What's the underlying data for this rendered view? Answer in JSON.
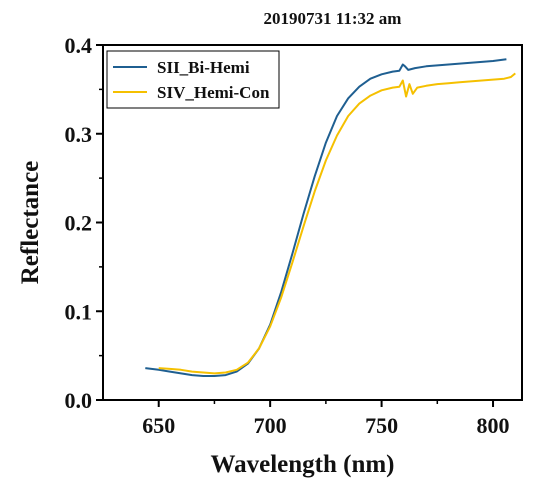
{
  "chart_data": {
    "type": "line",
    "title": "20190731 11:32 am",
    "xlabel": "Wavelength (nm)",
    "ylabel": "Reflectance",
    "xlim": [
      625,
      813
    ],
    "ylim": [
      0.0,
      0.4
    ],
    "x_ticks": [
      650,
      700,
      750,
      800
    ],
    "y_ticks": [
      0.0,
      0.1,
      0.2,
      0.3,
      0.4
    ],
    "x_tick_labels": [
      "650",
      "700",
      "750",
      "800"
    ],
    "y_tick_labels": [
      "0.0",
      "0.1",
      "0.2",
      "0.3",
      "0.4"
    ],
    "grid": false,
    "legend_position": "top-left",
    "series": [
      {
        "name": "SII_Bi-Hemi",
        "color": "#1f5f91",
        "x": [
          644,
          650,
          655,
          660,
          665,
          670,
          675,
          680,
          685,
          690,
          695,
          700,
          705,
          710,
          715,
          720,
          725,
          730,
          735,
          740,
          745,
          750,
          755,
          758,
          759.5,
          760.5,
          762,
          765,
          770,
          775,
          780,
          785,
          790,
          795,
          800,
          806
        ],
        "y": [
          0.036,
          0.034,
          0.032,
          0.03,
          0.028,
          0.027,
          0.027,
          0.028,
          0.032,
          0.041,
          0.058,
          0.085,
          0.122,
          0.165,
          0.21,
          0.252,
          0.29,
          0.32,
          0.34,
          0.353,
          0.362,
          0.367,
          0.37,
          0.371,
          0.378,
          0.376,
          0.372,
          0.374,
          0.376,
          0.377,
          0.378,
          0.379,
          0.38,
          0.381,
          0.382,
          0.384
        ]
      },
      {
        "name": "SIV_Hemi-Con",
        "color": "#f5c000",
        "x": [
          650,
          655,
          660,
          665,
          670,
          675,
          680,
          685,
          690,
          695,
          700,
          705,
          710,
          715,
          720,
          725,
          730,
          735,
          740,
          745,
          750,
          755,
          758,
          759.5,
          761,
          762.5,
          764,
          766,
          770,
          775,
          780,
          785,
          790,
          795,
          800,
          805,
          808,
          810
        ],
        "y": [
          0.036,
          0.035,
          0.034,
          0.032,
          0.031,
          0.03,
          0.031,
          0.034,
          0.042,
          0.058,
          0.083,
          0.116,
          0.155,
          0.196,
          0.235,
          0.27,
          0.298,
          0.32,
          0.334,
          0.343,
          0.349,
          0.352,
          0.353,
          0.36,
          0.342,
          0.356,
          0.345,
          0.352,
          0.354,
          0.356,
          0.357,
          0.358,
          0.359,
          0.36,
          0.361,
          0.362,
          0.364,
          0.368
        ]
      }
    ]
  }
}
